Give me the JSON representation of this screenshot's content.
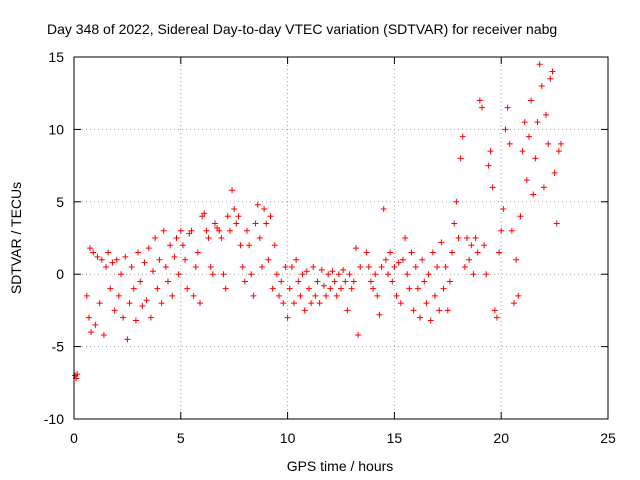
{
  "chart_data": {
    "type": "scatter",
    "title": "Day 348 of 2022, Sidereal Day-to-day VTEC variation (SDTVAR) for receiver nabg",
    "xlabel": "GPS time / hours",
    "ylabel": "SDTVAR / TECUs",
    "xlim": [
      0,
      25
    ],
    "ylim": [
      -10,
      15
    ],
    "xticks": [
      0,
      5,
      10,
      15,
      20,
      25
    ],
    "yticks": [
      -10,
      -5,
      0,
      5,
      10,
      15
    ],
    "xtick_labels": [
      "0",
      "5",
      "10",
      "15",
      "20",
      "25"
    ],
    "ytick_labels": [
      "-10",
      "-5",
      "0",
      "5",
      "10",
      "15"
    ],
    "grid": true,
    "marker": "+",
    "color": "#ff0000",
    "series": [
      {
        "name": "SDTVAR",
        "points": [
          [
            0.05,
            -7.0
          ],
          [
            0.1,
            -7.2
          ],
          [
            0.15,
            -6.9
          ],
          [
            0.6,
            -1.5
          ],
          [
            0.7,
            -3.0
          ],
          [
            0.75,
            1.8
          ],
          [
            0.8,
            -4.0
          ],
          [
            0.9,
            1.5
          ],
          [
            1.0,
            -3.5
          ],
          [
            1.1,
            1.2
          ],
          [
            1.2,
            -2.0
          ],
          [
            1.3,
            1.0
          ],
          [
            1.4,
            -4.2
          ],
          [
            1.5,
            0.5
          ],
          [
            1.6,
            1.5
          ],
          [
            1.7,
            -1.0
          ],
          [
            1.8,
            0.8
          ],
          [
            1.9,
            -2.5
          ],
          [
            2.0,
            1.0
          ],
          [
            2.1,
            -1.5
          ],
          [
            2.2,
            0.0
          ],
          [
            2.3,
            -3.0
          ],
          [
            2.4,
            1.2
          ],
          [
            2.5,
            -4.5
          ],
          [
            2.6,
            -2.0
          ],
          [
            2.7,
            0.5
          ],
          [
            2.8,
            -1.0
          ],
          [
            2.9,
            -3.2
          ],
          [
            3.0,
            1.5
          ],
          [
            3.1,
            -0.5
          ],
          [
            3.2,
            -2.2
          ],
          [
            3.3,
            0.8
          ],
          [
            3.4,
            -1.8
          ],
          [
            3.5,
            1.8
          ],
          [
            3.6,
            -3.0
          ],
          [
            3.7,
            0.2
          ],
          [
            3.8,
            2.5
          ],
          [
            3.9,
            -1.0
          ],
          [
            4.0,
            1.0
          ],
          [
            4.1,
            -2.0
          ],
          [
            4.2,
            3.0
          ],
          [
            4.3,
            0.5
          ],
          [
            4.4,
            -0.5
          ],
          [
            4.5,
            2.0
          ],
          [
            4.6,
            -1.5
          ],
          [
            4.7,
            1.2
          ],
          [
            4.8,
            2.5
          ],
          [
            4.9,
            0.0
          ],
          [
            5.0,
            3.0
          ],
          [
            5.1,
            2.0
          ],
          [
            5.2,
            1.0
          ],
          [
            5.3,
            -1.0
          ],
          [
            5.4,
            2.8
          ],
          [
            5.5,
            3.0
          ],
          [
            5.6,
            -1.5
          ],
          [
            5.7,
            0.5
          ],
          [
            5.8,
            1.5
          ],
          [
            5.9,
            -2.0
          ],
          [
            6.0,
            4.0
          ],
          [
            6.1,
            4.2
          ],
          [
            6.2,
            3.0
          ],
          [
            6.3,
            2.5
          ],
          [
            6.4,
            0.5
          ],
          [
            6.5,
            0.0
          ],
          [
            6.6,
            3.5
          ],
          [
            6.7,
            3.2
          ],
          [
            6.8,
            3.0
          ],
          [
            6.9,
            2.5
          ],
          [
            7.0,
            0.0
          ],
          [
            7.1,
            -1.0
          ],
          [
            7.2,
            4.0
          ],
          [
            7.3,
            3.0
          ],
          [
            7.4,
            5.8
          ],
          [
            7.5,
            4.5
          ],
          [
            7.6,
            3.5
          ],
          [
            7.7,
            4.0
          ],
          [
            7.8,
            2.0
          ],
          [
            7.9,
            0.5
          ],
          [
            8.0,
            -0.5
          ],
          [
            8.1,
            3.0
          ],
          [
            8.2,
            2.0
          ],
          [
            8.3,
            0.0
          ],
          [
            8.4,
            -1.5
          ],
          [
            8.5,
            3.5
          ],
          [
            8.6,
            4.8
          ],
          [
            8.7,
            2.5
          ],
          [
            8.8,
            0.5
          ],
          [
            8.9,
            4.5
          ],
          [
            9.0,
            3.5
          ],
          [
            9.1,
            1.0
          ],
          [
            9.2,
            4.0
          ],
          [
            9.3,
            -1.0
          ],
          [
            9.4,
            2.0
          ],
          [
            9.5,
            0.0
          ],
          [
            9.6,
            -1.5
          ],
          [
            9.7,
            -0.5
          ],
          [
            9.8,
            -2.0
          ],
          [
            9.9,
            0.5
          ],
          [
            10.0,
            -3.0
          ],
          [
            10.1,
            -1.0
          ],
          [
            10.2,
            0.5
          ],
          [
            10.3,
            -2.0
          ],
          [
            10.4,
            1.0
          ],
          [
            10.5,
            -0.5
          ],
          [
            10.6,
            -1.5
          ],
          [
            10.7,
            0.0
          ],
          [
            10.8,
            -2.5
          ],
          [
            10.9,
            0.2
          ],
          [
            11.0,
            -1.0
          ],
          [
            11.1,
            -2.0
          ],
          [
            11.2,
            0.5
          ],
          [
            11.3,
            -1.5
          ],
          [
            11.4,
            -0.5
          ],
          [
            11.5,
            -2.0
          ],
          [
            11.6,
            0.3
          ],
          [
            11.7,
            -0.8
          ],
          [
            11.8,
            -1.5
          ],
          [
            11.9,
            0.0
          ],
          [
            12.0,
            -1.0
          ],
          [
            12.1,
            0.2
          ],
          [
            12.2,
            -0.5
          ],
          [
            12.3,
            -1.5
          ],
          [
            12.4,
            0.0
          ],
          [
            12.5,
            -1.0
          ],
          [
            12.6,
            0.3
          ],
          [
            12.7,
            -0.5
          ],
          [
            12.8,
            -2.5
          ],
          [
            12.9,
            0.0
          ],
          [
            13.0,
            -1.0
          ],
          [
            13.1,
            -0.5
          ],
          [
            13.2,
            1.8
          ],
          [
            13.3,
            -4.2
          ],
          [
            13.4,
            0.5
          ],
          [
            13.7,
            1.5
          ],
          [
            13.8,
            0.5
          ],
          [
            13.9,
            -0.5
          ],
          [
            14.0,
            -1.0
          ],
          [
            14.1,
            0.0
          ],
          [
            14.2,
            -1.5
          ],
          [
            14.3,
            -2.8
          ],
          [
            14.4,
            0.5
          ],
          [
            14.5,
            4.5
          ],
          [
            14.6,
            1.0
          ],
          [
            14.7,
            0.0
          ],
          [
            14.8,
            1.5
          ],
          [
            14.9,
            -0.5
          ],
          [
            15.0,
            0.5
          ],
          [
            15.1,
            -1.5
          ],
          [
            15.2,
            0.8
          ],
          [
            15.3,
            -2.0
          ],
          [
            15.4,
            1.0
          ],
          [
            15.5,
            2.5
          ],
          [
            15.6,
            0.0
          ],
          [
            15.7,
            -1.0
          ],
          [
            15.8,
            1.5
          ],
          [
            15.9,
            -2.5
          ],
          [
            16.0,
            0.5
          ],
          [
            16.1,
            -1.0
          ],
          [
            16.2,
            -3.0
          ],
          [
            16.3,
            1.0
          ],
          [
            16.4,
            -0.5
          ],
          [
            16.5,
            -2.0
          ],
          [
            16.6,
            0.0
          ],
          [
            16.7,
            -3.2
          ],
          [
            16.8,
            1.5
          ],
          [
            16.9,
            -1.5
          ],
          [
            17.0,
            0.5
          ],
          [
            17.1,
            -2.5
          ],
          [
            17.2,
            2.2
          ],
          [
            17.3,
            -1.0
          ],
          [
            17.4,
            0.5
          ],
          [
            17.5,
            -2.5
          ],
          [
            17.6,
            -0.5
          ],
          [
            17.7,
            1.5
          ],
          [
            17.8,
            3.5
          ],
          [
            17.9,
            5.0
          ],
          [
            18.0,
            2.5
          ],
          [
            18.1,
            8.0
          ],
          [
            18.2,
            9.5
          ],
          [
            18.3,
            0.5
          ],
          [
            18.4,
            2.5
          ],
          [
            18.5,
            1.0
          ],
          [
            18.6,
            2.0
          ],
          [
            18.7,
            0.0
          ],
          [
            18.8,
            2.5
          ],
          [
            18.9,
            1.5
          ],
          [
            19.0,
            12.0
          ],
          [
            19.1,
            11.5
          ],
          [
            19.2,
            2.0
          ],
          [
            19.3,
            0.0
          ],
          [
            19.4,
            7.5
          ],
          [
            19.5,
            8.5
          ],
          [
            19.6,
            6.0
          ],
          [
            19.7,
            -2.5
          ],
          [
            19.8,
            -3.0
          ],
          [
            19.9,
            1.5
          ],
          [
            20.0,
            3.0
          ],
          [
            20.1,
            4.5
          ],
          [
            20.2,
            10.0
          ],
          [
            20.3,
            11.5
          ],
          [
            20.4,
            9.0
          ],
          [
            20.5,
            3.0
          ],
          [
            20.6,
            -2.0
          ],
          [
            20.7,
            1.0
          ],
          [
            20.8,
            -1.5
          ],
          [
            20.9,
            4.0
          ],
          [
            21.0,
            8.5
          ],
          [
            21.1,
            10.5
          ],
          [
            21.2,
            6.5
          ],
          [
            21.3,
            9.5
          ],
          [
            21.4,
            12.0
          ],
          [
            21.5,
            5.5
          ],
          [
            21.6,
            8.0
          ],
          [
            21.7,
            10.5
          ],
          [
            21.8,
            14.5
          ],
          [
            21.9,
            13.0
          ],
          [
            22.0,
            6.0
          ],
          [
            22.1,
            11.0
          ],
          [
            22.2,
            9.0
          ],
          [
            22.3,
            13.5
          ],
          [
            22.4,
            14.0
          ],
          [
            22.5,
            7.0
          ],
          [
            22.6,
            3.5
          ],
          [
            22.7,
            8.5
          ],
          [
            22.8,
            9.0
          ]
        ]
      }
    ]
  }
}
